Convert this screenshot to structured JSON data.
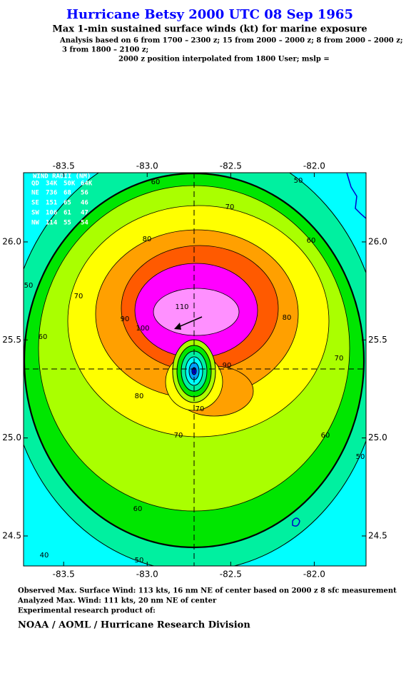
{
  "header": {
    "title": "Hurricane Betsy 2000 UTC 08 Sep 1965",
    "subtitle": "Max 1-min sustained surface winds (kt) for marine exposure",
    "analysis": [
      "Analysis based on  6 from 1700 – 2300 z;  15 from 2000 – 2000 z;  8 from 2000 – 2000 z;",
      "3 from 1800 – 2100 z;",
      "2000 z position interpolated from 1800 User; mslp ="
    ]
  },
  "map": {
    "xlim": [
      -83.74,
      -81.69
    ],
    "ylim": [
      24.347,
      26.353
    ],
    "xticks": [
      -83.5,
      {
        "value": -83.0,
        "label": "-83.0"
      },
      -82.5,
      {
        "value": -82.0,
        "label": "-82.0"
      }
    ],
    "yticks": [
      {
        "value": 26.0,
        "label": "26.0"
      },
      25.5,
      {
        "value": 25.0,
        "label": "25.0"
      },
      24.5
    ],
    "contour_labels": [
      60,
      50,
      70,
      80,
      60,
      50,
      70,
      60,
      90,
      110,
      100,
      80,
      70,
      90,
      80,
      70,
      70,
      60,
      50,
      60,
      50,
      40
    ],
    "wind_radii": {
      "title": "WIND RADII (NM)",
      "header": [
        "QD",
        "34K",
        "50K",
        "64K"
      ],
      "rows": [
        [
          "NE",
          736,
          68,
          56
        ],
        [
          "SE",
          151,
          65,
          46
        ],
        [
          "SW",
          106,
          61,
          47
        ],
        [
          "NW",
          114,
          55,
          54
        ]
      ]
    }
  },
  "footer": {
    "lines": [
      "Observed Max. Surface Wind: 113 kts, 16 nm NE of center based on 2000 z 8 sfc measurement",
      "Analyzed Max. Wind: 111 kts, 20 nm NE of center",
      "Experimental research product of:"
    ],
    "organization": "NOAA / AOML / Hurricane Research Division"
  }
}
